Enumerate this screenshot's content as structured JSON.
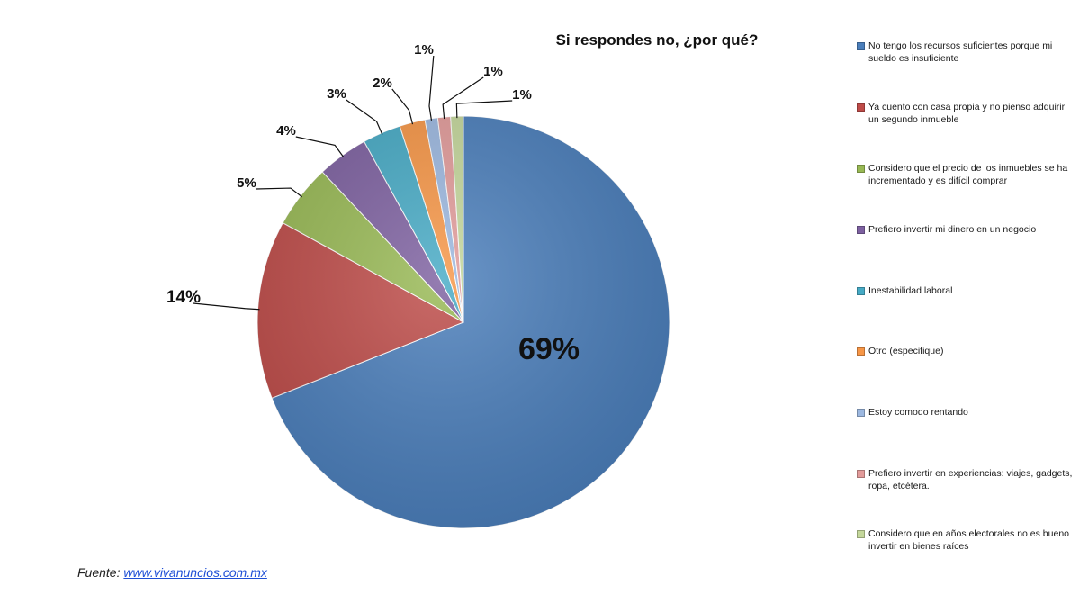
{
  "chart_data": {
    "type": "pie",
    "title": "Si respondes no, ¿por qué?",
    "series": [
      {
        "name": "No tengo los recursos suficientes porque mi sueldo es insuficiente",
        "value": 69,
        "label": "69%",
        "color": "#4a7ebb"
      },
      {
        "name": "Ya cuento con casa propia y no pienso adquirir un segundo inmueble",
        "value": 14,
        "label": "14%",
        "color": "#be4b48"
      },
      {
        "name": "Considero que el precio de los inmuebles se ha incrementado y es difícil comprar",
        "value": 5,
        "label": "5%",
        "color": "#98b954"
      },
      {
        "name": "Prefiero invertir mi dinero en un negocio",
        "value": 4,
        "label": "4%",
        "color": "#7d60a0"
      },
      {
        "name": "Inestabilidad laboral",
        "value": 3,
        "label": "3%",
        "color": "#46aac5"
      },
      {
        "name": "Otro (especifique)",
        "value": 2,
        "label": "2%",
        "color": "#f79646"
      },
      {
        "name": "Estoy comodo rentando",
        "value": 1,
        "label": "1%",
        "color": "#9cb8e0"
      },
      {
        "name": "Prefiero invertir en experiencias: viajes, gadgets, ropa, etcétera.",
        "value": 1,
        "label": "1%",
        "color": "#e29b9a"
      },
      {
        "name": "Considero que en años electorales no es bueno invertir en bienes raíces",
        "value": 1,
        "label": "1%",
        "color": "#c4d79b"
      }
    ],
    "legend_position": "right"
  },
  "source": {
    "prefix": "Fuente:",
    "link_text": "www.vivanuncios.com.mx"
  }
}
